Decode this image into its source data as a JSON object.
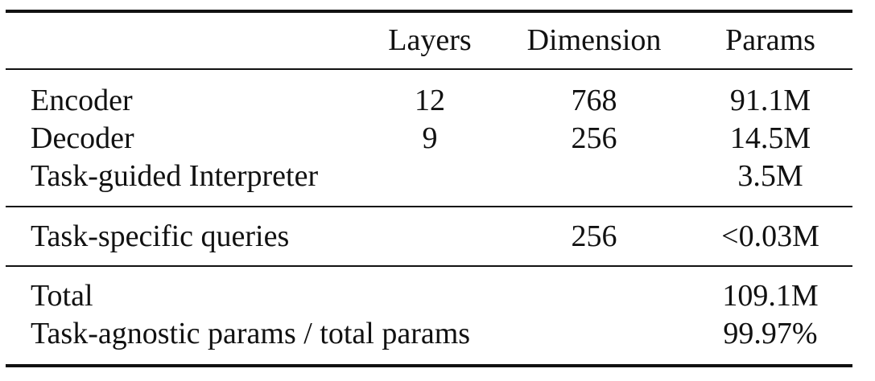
{
  "table": {
    "headers": [
      "",
      "Layers",
      "Dimension",
      "Params"
    ],
    "groups": [
      {
        "rows": [
          {
            "name": "Encoder",
            "layers": "12",
            "dimension": "768",
            "params": "91.1M"
          },
          {
            "name": "Decoder",
            "layers": "9",
            "dimension": "256",
            "params": "14.5M"
          },
          {
            "name": "Task-guided Interpreter",
            "layers": "",
            "dimension": "",
            "params": "3.5M"
          }
        ]
      },
      {
        "rows": [
          {
            "name": "Task-specific queries",
            "layers": "",
            "dimension": "256",
            "params": "<0.03M"
          }
        ]
      },
      {
        "rows": [
          {
            "name": "Total",
            "layers": "",
            "dimension": "",
            "params": "109.1M"
          },
          {
            "name": "Task-agnostic params / total params",
            "layers": "",
            "dimension": "",
            "params": "99.97%"
          }
        ]
      }
    ]
  }
}
